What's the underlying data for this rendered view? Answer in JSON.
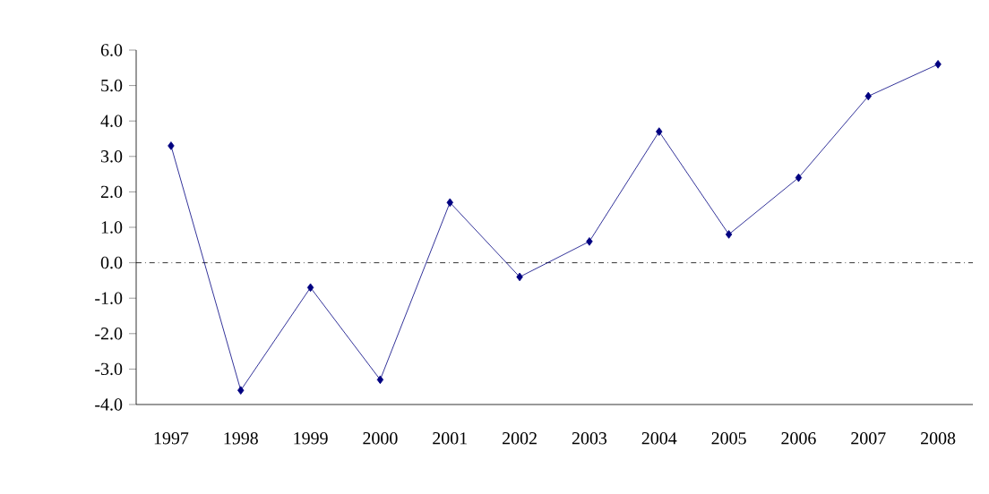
{
  "chart_data": {
    "type": "line",
    "categories": [
      "1997",
      "1998",
      "1999",
      "2000",
      "2001",
      "2002",
      "2003",
      "2004",
      "2005",
      "2006",
      "2007",
      "2008"
    ],
    "values": [
      3.3,
      -3.6,
      -0.7,
      -3.3,
      1.7,
      -0.4,
      0.6,
      3.7,
      0.8,
      2.4,
      4.7,
      5.6
    ],
    "color": "#000080",
    "marker": "diamond",
    "line_style": "solid",
    "ylim": [
      -4,
      6
    ],
    "yticks": [
      {
        "value": -4,
        "label": "-4.0"
      },
      {
        "value": -3,
        "label": "-3.0"
      },
      {
        "value": -2,
        "label": "-2.0"
      },
      {
        "value": -1,
        "label": "-1.0"
      },
      {
        "value": 0,
        "label": "0.0"
      },
      {
        "value": 1,
        "label": "1.0"
      },
      {
        "value": 2,
        "label": "2.0"
      },
      {
        "value": 3,
        "label": "3.0"
      },
      {
        "value": 4,
        "label": "4.0"
      },
      {
        "value": 5,
        "label": "5.0"
      },
      {
        "value": 6,
        "label": "6.0"
      }
    ],
    "ref_lines": [
      {
        "axis": "y",
        "value": 0,
        "color": "#000000",
        "line_style": "dashdot"
      }
    ]
  }
}
